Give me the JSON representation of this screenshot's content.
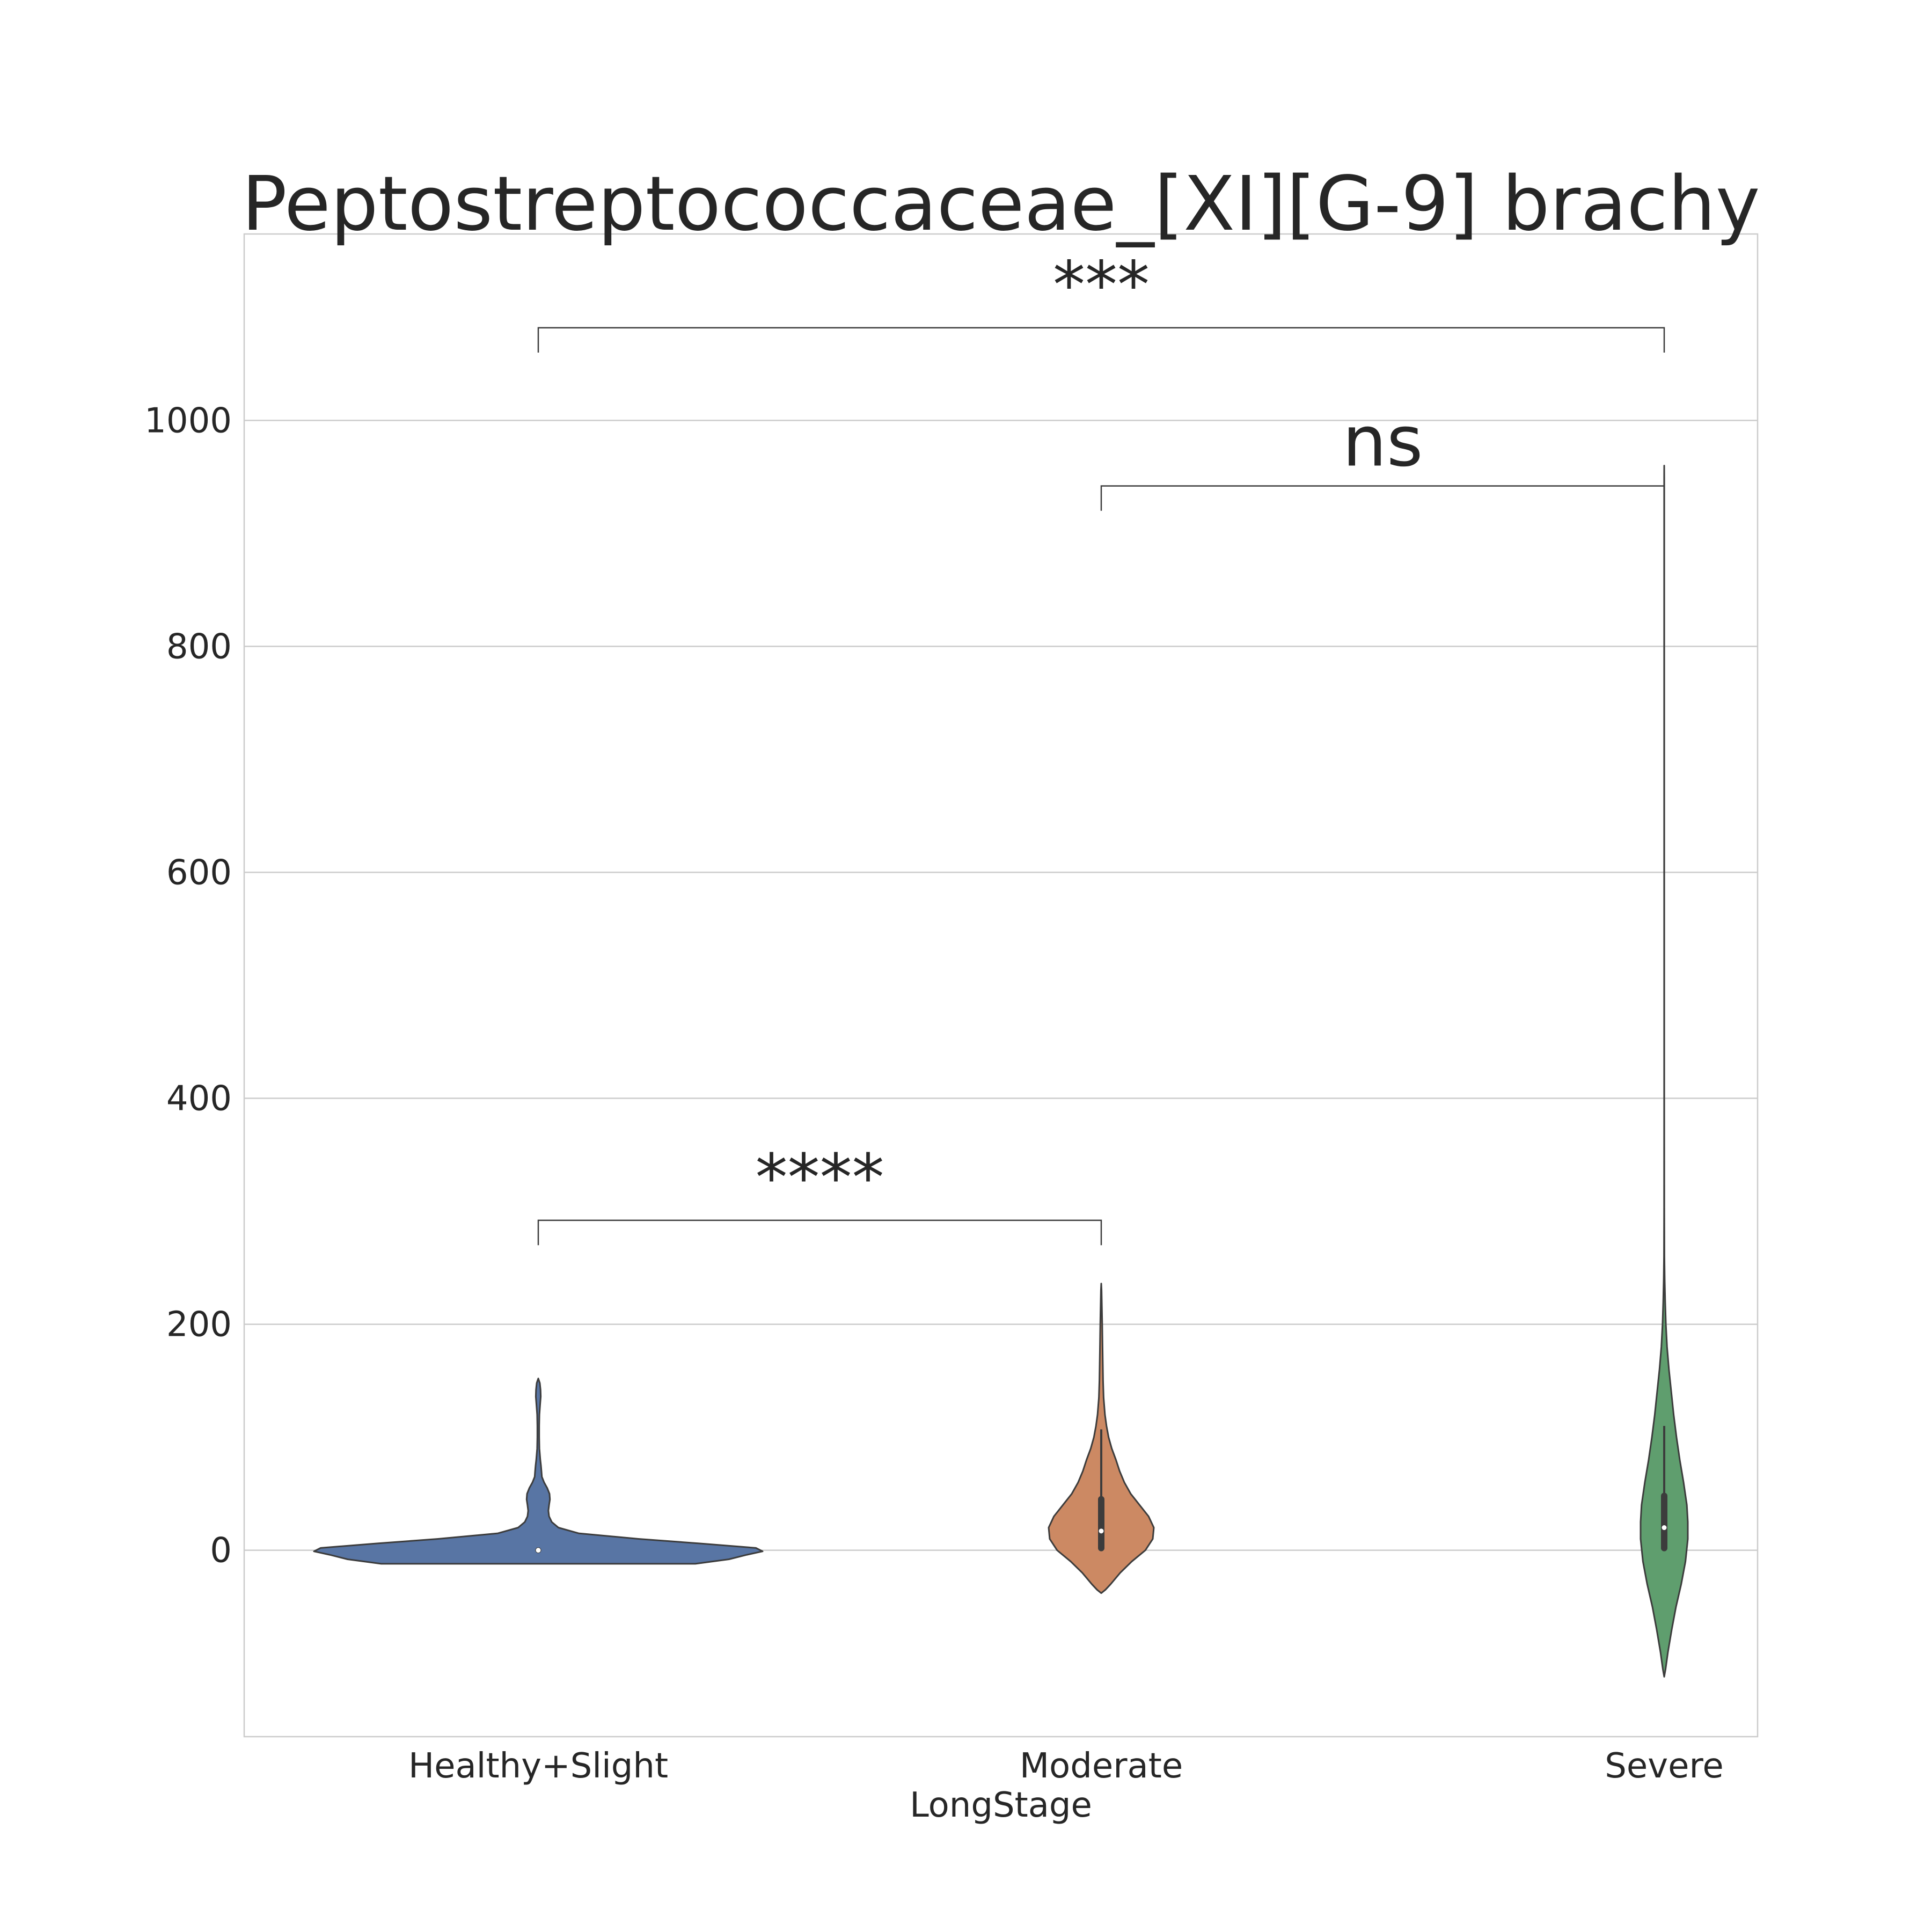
{
  "chart_data": {
    "type": "violin",
    "title": "Peptostreptococcaceae_[XI][G-9] brachy",
    "xlabel": "LongStage",
    "ylabel": "",
    "categories": [
      "Healthy+Slight",
      "Moderate",
      "Severe"
    ],
    "ylim": [
      -165,
      1165
    ],
    "yticks": [
      0,
      200,
      400,
      600,
      800,
      1000
    ],
    "ytick_labels": [
      "0",
      "200",
      "400",
      "600",
      "800",
      "1000"
    ],
    "grid": true,
    "colors": {
      "Healthy+Slight": "#5875a4",
      "Moderate": "#cc8963",
      "Severe": "#5f9e6e",
      "outline": "#3c3c3c",
      "grid": "#cccccc",
      "text": "#262626"
    },
    "violins": [
      {
        "name": "Healthy+Slight",
        "profile": [
          [
            -12,
            0.7
          ],
          [
            -8,
            0.85
          ],
          [
            -4,
            0.93
          ],
          [
            -1,
            1.0
          ],
          [
            2,
            0.97
          ],
          [
            6,
            0.72
          ],
          [
            10,
            0.45
          ],
          [
            15,
            0.18
          ],
          [
            20,
            0.09
          ],
          [
            25,
            0.06
          ],
          [
            30,
            0.048
          ],
          [
            35,
            0.045
          ],
          [
            40,
            0.048
          ],
          [
            45,
            0.052
          ],
          [
            50,
            0.05
          ],
          [
            55,
            0.04
          ],
          [
            60,
            0.026
          ],
          [
            65,
            0.016
          ],
          [
            70,
            0.014
          ],
          [
            75,
            0.012
          ],
          [
            80,
            0.009
          ],
          [
            90,
            0.005
          ],
          [
            100,
            0.004
          ],
          [
            110,
            0.004
          ],
          [
            120,
            0.005
          ],
          [
            128,
            0.008
          ],
          [
            136,
            0.011
          ],
          [
            142,
            0.01
          ],
          [
            148,
            0.007
          ],
          [
            152,
            0.0
          ]
        ],
        "box": {
          "q1": 0,
          "median": 0,
          "q3": 0,
          "whisker_low": 0,
          "whisker_high": 0
        }
      },
      {
        "name": "Moderate",
        "profile": [
          [
            -38,
            0.0
          ],
          [
            -35,
            0.08
          ],
          [
            -30,
            0.18
          ],
          [
            -20,
            0.36
          ],
          [
            -10,
            0.58
          ],
          [
            0,
            0.84
          ],
          [
            10,
            0.98
          ],
          [
            20,
            1.0
          ],
          [
            30,
            0.9
          ],
          [
            40,
            0.73
          ],
          [
            50,
            0.56
          ],
          [
            60,
            0.44
          ],
          [
            70,
            0.35
          ],
          [
            80,
            0.28
          ],
          [
            90,
            0.2
          ],
          [
            100,
            0.14
          ],
          [
            110,
            0.1
          ],
          [
            120,
            0.07
          ],
          [
            135,
            0.045
          ],
          [
            150,
            0.035
          ],
          [
            165,
            0.03
          ],
          [
            180,
            0.024
          ],
          [
            200,
            0.018
          ],
          [
            215,
            0.012
          ],
          [
            230,
            0.006
          ],
          [
            236,
            0.0
          ]
        ],
        "box": {
          "q1": 0,
          "median": 17,
          "q3": 47,
          "whisker_low": 0,
          "whisker_high": 107
        }
      },
      {
        "name": "Severe",
        "profile": [
          [
            -112,
            0.0
          ],
          [
            -105,
            0.06
          ],
          [
            -90,
            0.16
          ],
          [
            -70,
            0.32
          ],
          [
            -50,
            0.5
          ],
          [
            -30,
            0.72
          ],
          [
            -10,
            0.9
          ],
          [
            10,
            1.0
          ],
          [
            25,
            1.0
          ],
          [
            40,
            0.96
          ],
          [
            60,
            0.82
          ],
          [
            80,
            0.66
          ],
          [
            100,
            0.52
          ],
          [
            120,
            0.4
          ],
          [
            140,
            0.3
          ],
          [
            160,
            0.2
          ],
          [
            180,
            0.12
          ],
          [
            200,
            0.07
          ],
          [
            220,
            0.04
          ],
          [
            240,
            0.02
          ],
          [
            260,
            0.01
          ],
          [
            300,
            0.005
          ],
          [
            400,
            0.003
          ],
          [
            600,
            0.003
          ],
          [
            800,
            0.003
          ],
          [
            950,
            0.003
          ],
          [
            960,
            0.0
          ]
        ],
        "box": {
          "q1": 0,
          "median": 20,
          "q3": 50,
          "whisker_low": 0,
          "whisker_high": 110
        }
      }
    ],
    "annotations": [
      {
        "from": "Healthy+Slight",
        "to": "Moderate",
        "bracket_y": 292,
        "bracket_drop": 22,
        "label": "****"
      },
      {
        "from": "Moderate",
        "to": "Severe",
        "bracket_y": 942,
        "bracket_drop": 22,
        "label": "ns"
      },
      {
        "from": "Healthy+Slight",
        "to": "Severe",
        "bracket_y": 1082,
        "bracket_drop": 22,
        "label": "***"
      }
    ]
  }
}
